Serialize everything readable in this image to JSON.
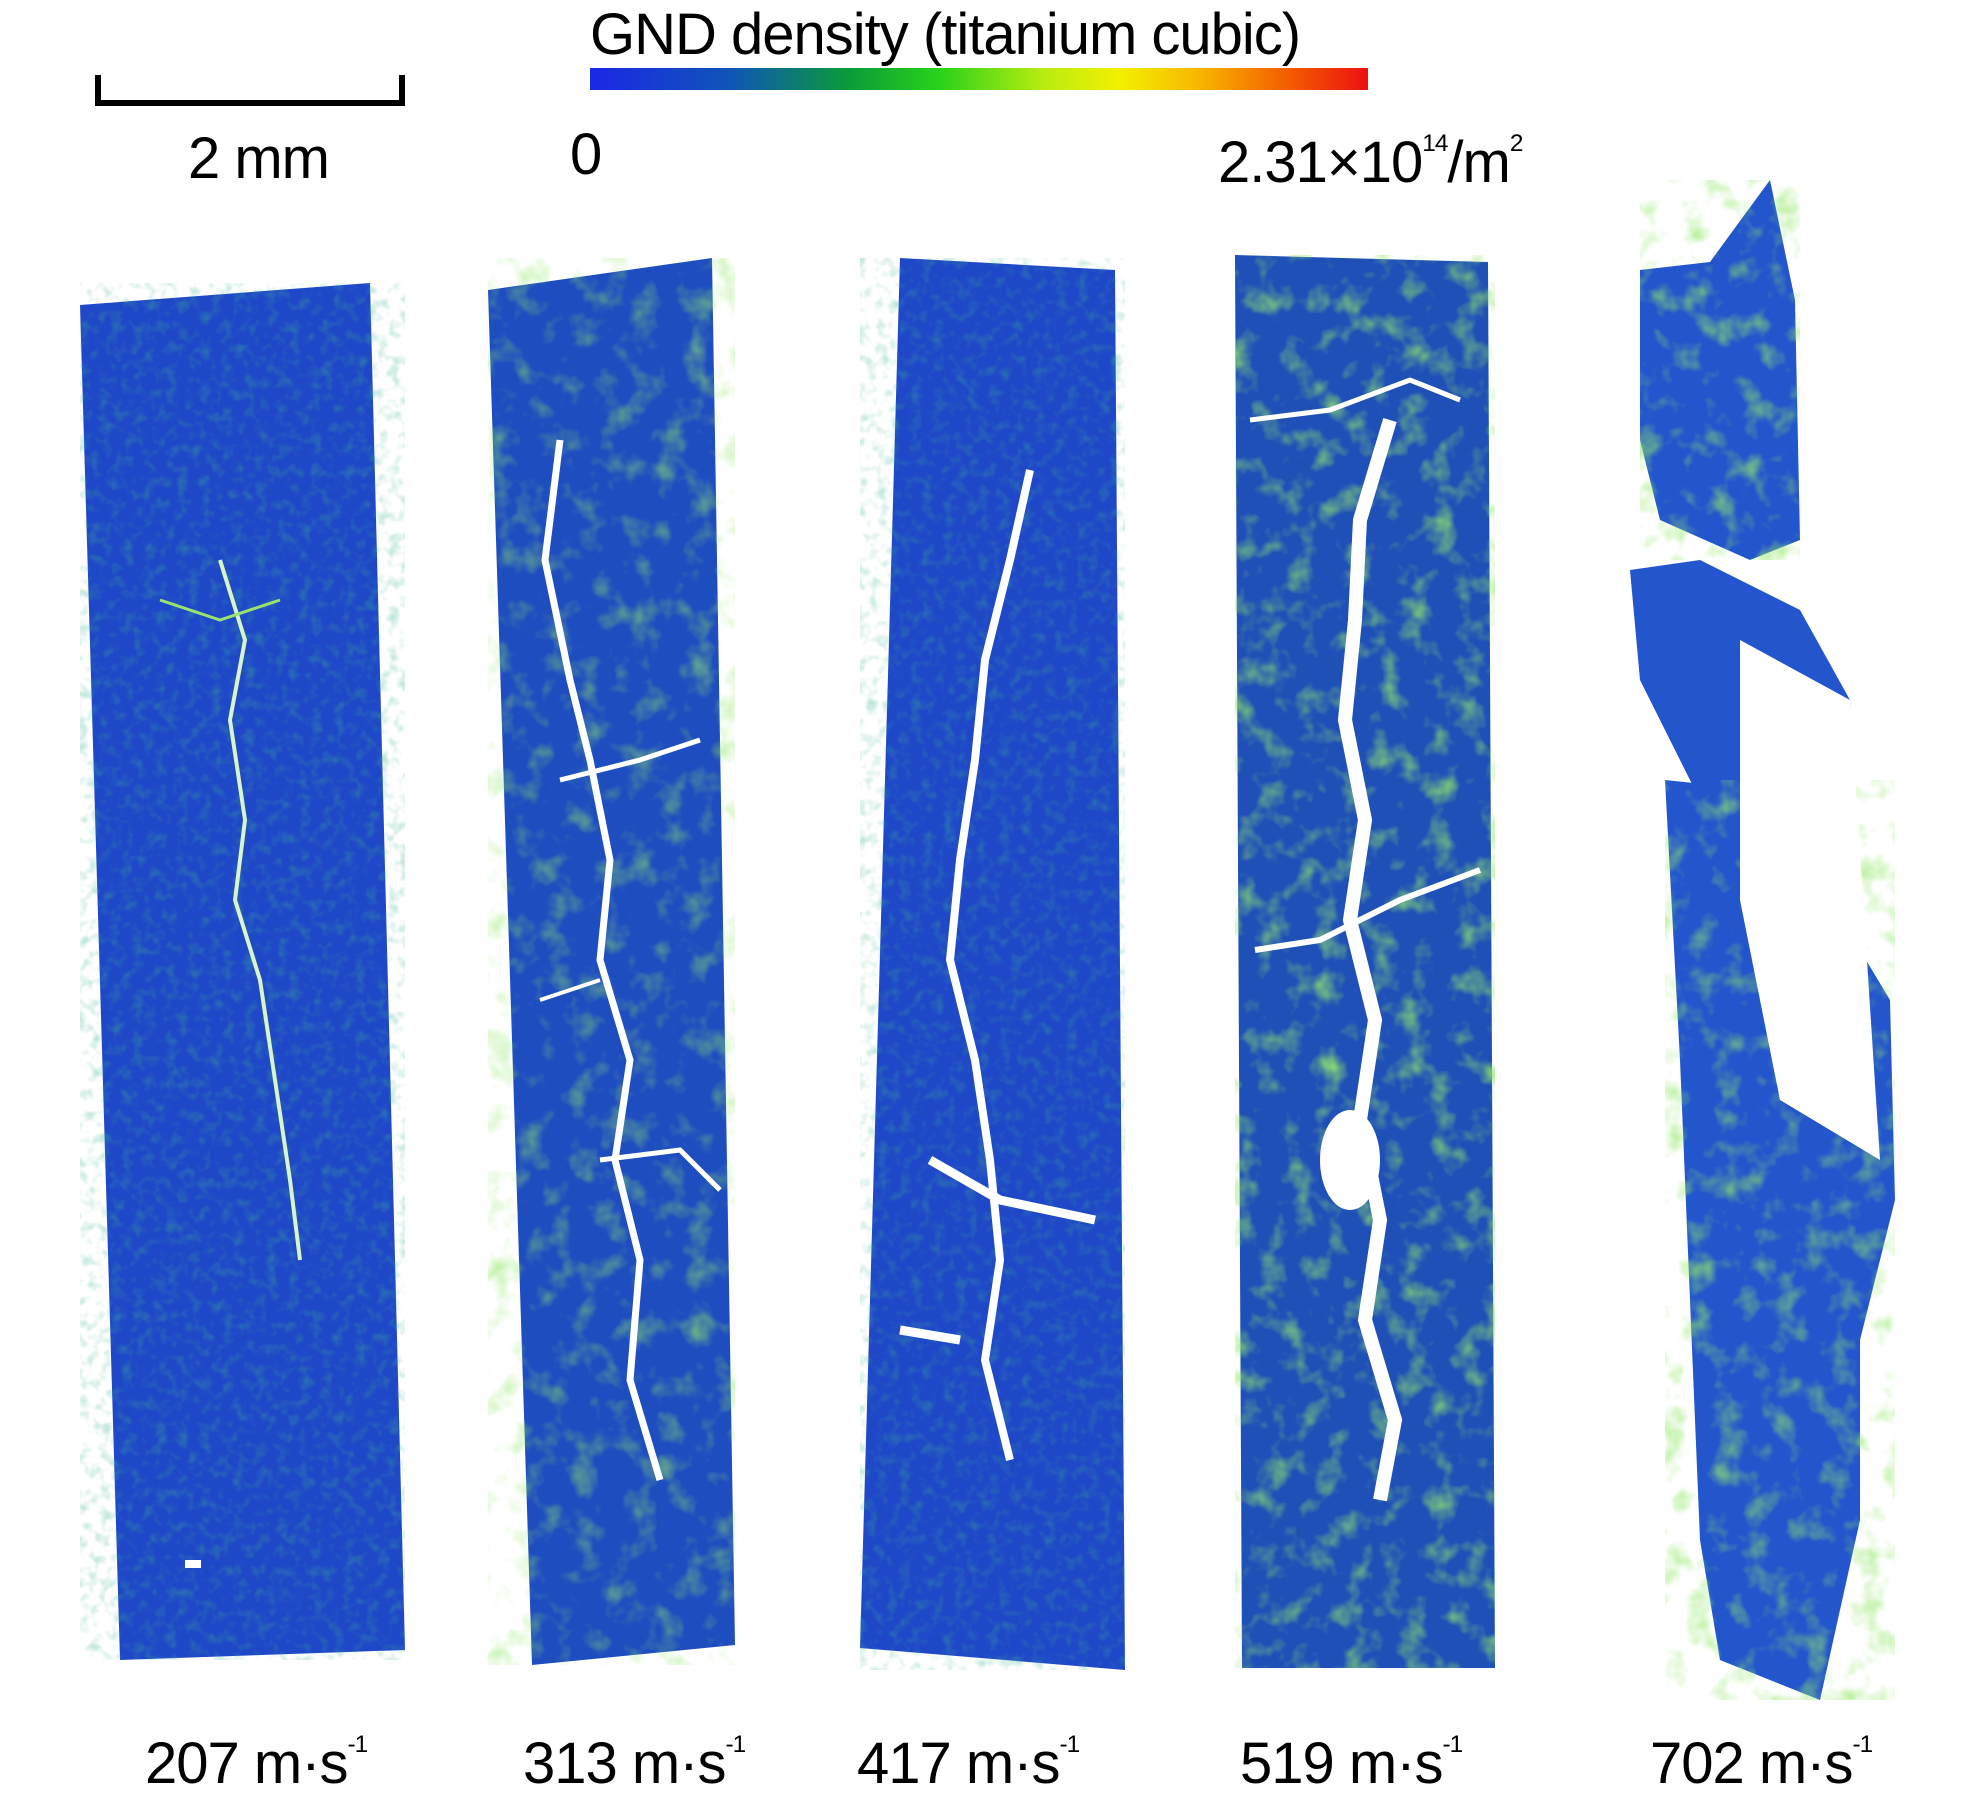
{
  "scale_bar": {
    "label": "2 mm"
  },
  "colorbar": {
    "title": "GND density (titanium cubic)",
    "min_label": "0",
    "max_label_mantissa": "2.31×10",
    "max_label_exponent": "14",
    "max_label_unit": "/m",
    "max_label_unit_exponent": "2",
    "colors": [
      "#1b27e6",
      "#0a9a3a",
      "#2ad21a",
      "#f3f000",
      "#ee1010"
    ]
  },
  "samples": [
    {
      "value": "207 m·s",
      "exponent": "-1"
    },
    {
      "value": "313 m·s",
      "exponent": "-1"
    },
    {
      "value": "417 m·s",
      "exponent": "-1"
    },
    {
      "value": "519 m·s",
      "exponent": "-1"
    },
    {
      "value": "702 m·s",
      "exponent": "-1"
    }
  ],
  "map_colors": {
    "base": "#1f48c8",
    "green": "#3fc82a",
    "crack": "#ffffff"
  }
}
